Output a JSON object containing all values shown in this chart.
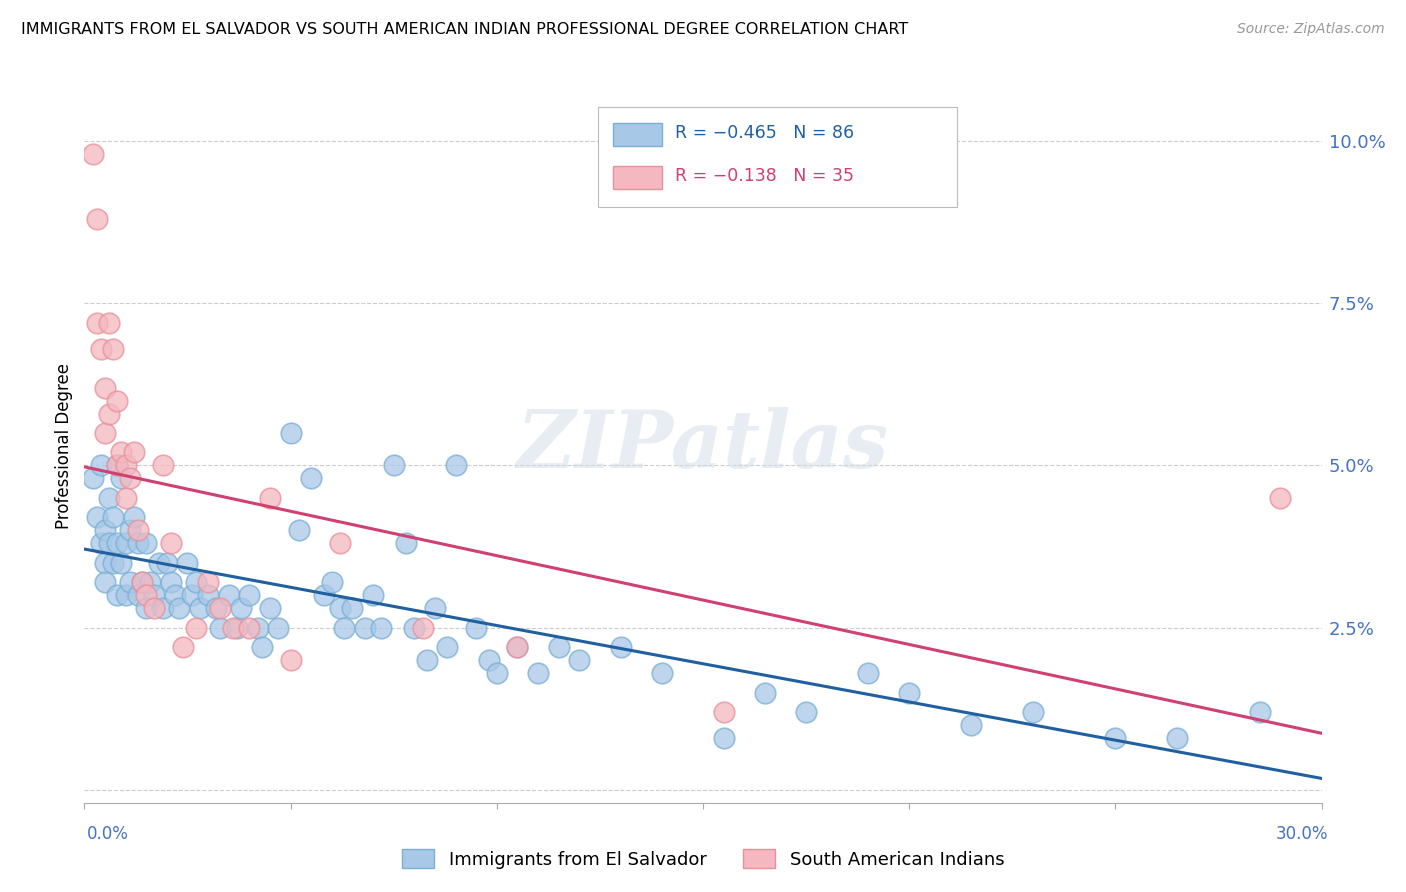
{
  "title": "IMMIGRANTS FROM EL SALVADOR VS SOUTH AMERICAN INDIAN PROFESSIONAL DEGREE CORRELATION CHART",
  "source": "Source: ZipAtlas.com",
  "ylabel": "Professional Degree",
  "ytick_labels": [
    "",
    "2.5%",
    "5.0%",
    "7.5%",
    "10.0%"
  ],
  "ytick_values": [
    0.0,
    0.025,
    0.05,
    0.075,
    0.1
  ],
  "xlim": [
    0.0,
    0.3
  ],
  "ylim": [
    -0.002,
    0.108
  ],
  "legend_r_blue": "R = −0.465",
  "legend_n_blue": "N = 86",
  "legend_r_pink": "R = −0.138",
  "legend_n_pink": "N = 35",
  "blue_color": "#a8c8e8",
  "blue_edge": "#7aafd4",
  "pink_color": "#f4b8c0",
  "pink_edge": "#e8909a",
  "trendline_blue": "#2060a0",
  "trendline_pink": "#d04070",
  "watermark": "ZIPatlas",
  "blue_scatter_x": [
    0.002,
    0.003,
    0.004,
    0.004,
    0.005,
    0.005,
    0.005,
    0.006,
    0.006,
    0.007,
    0.007,
    0.008,
    0.008,
    0.008,
    0.009,
    0.009,
    0.01,
    0.01,
    0.011,
    0.011,
    0.012,
    0.013,
    0.013,
    0.014,
    0.015,
    0.015,
    0.016,
    0.017,
    0.018,
    0.019,
    0.02,
    0.021,
    0.022,
    0.023,
    0.025,
    0.026,
    0.027,
    0.028,
    0.03,
    0.032,
    0.033,
    0.035,
    0.037,
    0.038,
    0.04,
    0.042,
    0.043,
    0.045,
    0.047,
    0.05,
    0.052,
    0.055,
    0.058,
    0.06,
    0.062,
    0.063,
    0.065,
    0.068,
    0.07,
    0.072,
    0.075,
    0.078,
    0.08,
    0.083,
    0.085,
    0.088,
    0.09,
    0.095,
    0.098,
    0.1,
    0.105,
    0.11,
    0.115,
    0.12,
    0.13,
    0.14,
    0.155,
    0.165,
    0.175,
    0.19,
    0.2,
    0.215,
    0.23,
    0.25,
    0.265,
    0.285
  ],
  "blue_scatter_y": [
    0.048,
    0.042,
    0.05,
    0.038,
    0.04,
    0.035,
    0.032,
    0.038,
    0.045,
    0.042,
    0.035,
    0.05,
    0.038,
    0.03,
    0.048,
    0.035,
    0.038,
    0.03,
    0.04,
    0.032,
    0.042,
    0.038,
    0.03,
    0.032,
    0.038,
    0.028,
    0.032,
    0.03,
    0.035,
    0.028,
    0.035,
    0.032,
    0.03,
    0.028,
    0.035,
    0.03,
    0.032,
    0.028,
    0.03,
    0.028,
    0.025,
    0.03,
    0.025,
    0.028,
    0.03,
    0.025,
    0.022,
    0.028,
    0.025,
    0.055,
    0.04,
    0.048,
    0.03,
    0.032,
    0.028,
    0.025,
    0.028,
    0.025,
    0.03,
    0.025,
    0.05,
    0.038,
    0.025,
    0.02,
    0.028,
    0.022,
    0.05,
    0.025,
    0.02,
    0.018,
    0.022,
    0.018,
    0.022,
    0.02,
    0.022,
    0.018,
    0.008,
    0.015,
    0.012,
    0.018,
    0.015,
    0.01,
    0.012,
    0.008,
    0.008,
    0.012
  ],
  "pink_scatter_x": [
    0.002,
    0.003,
    0.003,
    0.004,
    0.005,
    0.005,
    0.006,
    0.006,
    0.007,
    0.008,
    0.008,
    0.009,
    0.01,
    0.01,
    0.011,
    0.012,
    0.013,
    0.014,
    0.015,
    0.017,
    0.019,
    0.021,
    0.024,
    0.027,
    0.03,
    0.033,
    0.036,
    0.04,
    0.045,
    0.05,
    0.062,
    0.082,
    0.105,
    0.155,
    0.29
  ],
  "pink_scatter_y": [
    0.098,
    0.088,
    0.072,
    0.068,
    0.062,
    0.055,
    0.072,
    0.058,
    0.068,
    0.06,
    0.05,
    0.052,
    0.05,
    0.045,
    0.048,
    0.052,
    0.04,
    0.032,
    0.03,
    0.028,
    0.05,
    0.038,
    0.022,
    0.025,
    0.032,
    0.028,
    0.025,
    0.025,
    0.045,
    0.02,
    0.038,
    0.025,
    0.022,
    0.012,
    0.045
  ]
}
